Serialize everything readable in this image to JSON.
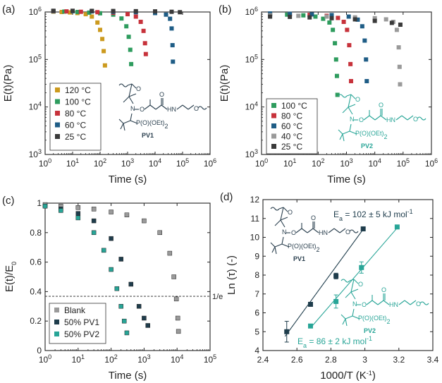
{
  "figure": {
    "labels": [
      "(a)",
      "(b)",
      "(c)",
      "(d)"
    ]
  },
  "chem": {
    "pv1_label": "PV1",
    "pv2_label": "PV2",
    "o_label": "O",
    "n_label": "N",
    "hn_label": "HN",
    "phos_label": "P(O)(OEt)",
    "sub2": "2"
  },
  "colors": {
    "c120": "#cc9a1e",
    "c100": "#2e9c5e",
    "c80": "#c7323b",
    "c60": "#1f5d86",
    "c40": "#9a9a9a",
    "c25": "#3a3a3a",
    "blank": "#9a9a9a",
    "pv1": "#1f3d4c",
    "pv2": "#28a597",
    "ink": "#1f3d4c"
  },
  "chart_data": [
    {
      "id": "a",
      "type": "scatter",
      "xscale": "log",
      "yscale": "log",
      "xlim": [
        1,
        1000000
      ],
      "ylim": [
        1000,
        1000000
      ],
      "xlabel": "Time (s)",
      "ylabel": "E(t)(Pa)",
      "xticks": [
        "10^0",
        "10^1",
        "10^2",
        "10^3",
        "10^4",
        "10^5",
        "10^6"
      ],
      "yticks": [
        "10^3",
        "10^4",
        "10^5",
        "10^6"
      ],
      "legend": "bottom-left",
      "series": [
        {
          "name": "120 °C",
          "color_key": "c120",
          "x": [
            2,
            4,
            8,
            15,
            30,
            50,
            80,
            100,
            120,
            135,
            150
          ],
          "y": [
            1020000,
            1000000,
            980000,
            950000,
            900000,
            800000,
            600000,
            420000,
            270000,
            150000,
            75000
          ]
        },
        {
          "name": "100 °C",
          "color_key": "c100",
          "x": [
            2,
            5,
            15,
            40,
            100,
            300,
            600,
            900,
            1100,
            1250,
            1350
          ],
          "y": [
            1030000,
            1020000,
            1000000,
            970000,
            940000,
            880000,
            730000,
            500000,
            300000,
            160000,
            80000
          ]
        },
        {
          "name": "80 °C",
          "color_key": "c80",
          "x": [
            2,
            6,
            20,
            80,
            300,
            1000,
            2000,
            3000,
            3800,
            4300,
            4600
          ],
          "y": [
            1040000,
            1030000,
            1010000,
            990000,
            960000,
            900000,
            800000,
            620000,
            400000,
            220000,
            130000
          ]
        },
        {
          "name": "60 °C",
          "color_key": "c60",
          "x": [
            2,
            10,
            50,
            300,
            2000,
            10000,
            25000,
            35000,
            40000,
            43000,
            44500
          ],
          "y": [
            1050000,
            1040000,
            1030000,
            1010000,
            990000,
            950000,
            880000,
            720000,
            450000,
            200000,
            90000
          ]
        },
        {
          "name": "25 °C",
          "color_key": "c25",
          "x": [
            2,
            10,
            50,
            300,
            2000,
            10000,
            40000,
            80000
          ],
          "y": [
            1060000,
            1060000,
            1055000,
            1050000,
            1040000,
            1030000,
            1010000,
            990000
          ]
        }
      ]
    },
    {
      "id": "b",
      "type": "scatter",
      "xscale": "log",
      "yscale": "log",
      "xlim": [
        1,
        1000000
      ],
      "ylim": [
        1000,
        1000000
      ],
      "xlabel": "Time (s)",
      "ylabel": "E(t)(Pa)",
      "xticks": [
        "10^0",
        "10^1",
        "10^2",
        "10^3",
        "10^4",
        "10^5",
        "10^6"
      ],
      "yticks": [
        "10^3",
        "10^4",
        "10^5",
        "10^6"
      ],
      "legend": "bottom-left",
      "series": [
        {
          "name": "100 °C",
          "color_key": "c100",
          "x": [
            2,
            8,
            30,
            80,
            150,
            250,
            330,
            390,
            430,
            460,
            480
          ],
          "y": [
            900000,
            880000,
            850000,
            800000,
            720000,
            600000,
            420000,
            220000,
            100000,
            45000,
            18000
          ]
        },
        {
          "name": "80 °C",
          "color_key": "c80",
          "x": [
            2,
            10,
            50,
            200,
            500,
            800,
            1050,
            1250,
            1380,
            1450
          ],
          "y": [
            920000,
            900000,
            870000,
            830000,
            750000,
            620000,
            420000,
            200000,
            80000,
            35000
          ]
        },
        {
          "name": "60 °C",
          "color_key": "c60",
          "x": [
            2,
            10,
            60,
            300,
            1200,
            2500,
            3600,
            4400,
            4900,
            5200
          ],
          "y": [
            930000,
            915000,
            890000,
            860000,
            800000,
            690000,
            500000,
            250000,
            100000,
            35000
          ]
        },
        {
          "name": "40 °C",
          "color_key": "c40",
          "x": [
            2,
            20,
            200,
            2000,
            10000,
            25000,
            45000,
            60000,
            70000,
            75000,
            78000
          ],
          "y": [
            850000,
            830000,
            800000,
            770000,
            740000,
            700000,
            620000,
            420000,
            180000,
            70000,
            30000
          ]
        },
        {
          "name": "25 °C",
          "color_key": "c25",
          "x": [
            2,
            10,
            50,
            300,
            2000,
            10000,
            40000,
            80000
          ],
          "y": [
            800000,
            790000,
            770000,
            740000,
            700000,
            650000,
            590000,
            540000
          ]
        }
      ]
    },
    {
      "id": "c",
      "type": "scatter",
      "xscale": "log",
      "yscale": "linear",
      "xlim": [
        1,
        100000
      ],
      "ylim": [
        0,
        1
      ],
      "xlabel": "Time (s)",
      "ylabel": "E(t)/E0",
      "xticks": [
        "10^0",
        "10^1",
        "10^2",
        "10^3",
        "10^4",
        "10^5"
      ],
      "yticks": [
        "0",
        "0.2",
        "0.4",
        "0.6",
        "0.8",
        "1"
      ],
      "legend": "bottom-left",
      "reference_line": {
        "y": 0.368,
        "label": "1/e"
      },
      "series": [
        {
          "name": "Blank",
          "color_key": "blank",
          "x": [
            1,
            3,
            10,
            30,
            100,
            300,
            1000,
            3000,
            6000,
            8000,
            9500,
            10500,
            11000
          ],
          "y": [
            0.99,
            0.98,
            0.97,
            0.96,
            0.94,
            0.92,
            0.88,
            0.8,
            0.66,
            0.5,
            0.35,
            0.22,
            0.13
          ]
        },
        {
          "name": "50% PV1",
          "color_key": "pv1",
          "x": [
            1,
            3,
            10,
            30,
            100,
            200,
            400,
            700,
            1000,
            1300
          ],
          "y": [
            0.98,
            0.96,
            0.93,
            0.88,
            0.76,
            0.62,
            0.45,
            0.3,
            0.22,
            0.17
          ]
        },
        {
          "name": "50% PV2",
          "color_key": "pv2",
          "x": [
            1,
            3,
            10,
            30,
            60,
            100,
            150,
            200,
            250,
            300
          ],
          "y": [
            0.98,
            0.95,
            0.9,
            0.8,
            0.68,
            0.55,
            0.42,
            0.3,
            0.2,
            0.12
          ]
        }
      ]
    },
    {
      "id": "d",
      "type": "scatter",
      "xscale": "linear",
      "yscale": "linear",
      "xlim": [
        2.4,
        3.4
      ],
      "ylim": [
        4,
        12
      ],
      "xlabel": "1000/T (K-1)",
      "ylabel": "Ln (τ) (-)",
      "xticks": [
        "2.4",
        "2.6",
        "2.8",
        "3",
        "3.2",
        "3.4"
      ],
      "yticks": [
        "4",
        "5",
        "6",
        "7",
        "8",
        "9",
        "10",
        "11",
        "12"
      ],
      "annotations": [
        "Ea = 102 ± 5 kJ mol-1",
        "Ea = 86 ± 2 kJ mol-1"
      ],
      "series": [
        {
          "name": "PV1",
          "color_key": "pv1",
          "x": [
            2.54,
            2.68,
            2.83,
            2.99
          ],
          "y": [
            5.0,
            6.45,
            7.95,
            10.45
          ],
          "err": [
            0.55,
            0.1,
            0.15,
            0.1
          ],
          "fit": [
            [
              2.53,
              4.75
            ],
            [
              3.0,
              10.55
            ]
          ]
        },
        {
          "name": "PV2",
          "color_key": "pv2",
          "x": [
            2.68,
            2.83,
            2.98,
            3.19
          ],
          "y": [
            5.3,
            6.6,
            8.4,
            10.55
          ],
          "err": [
            0.1,
            0.35,
            0.3,
            0.1
          ],
          "fit": [
            [
              2.68,
              5.2
            ],
            [
              3.2,
              10.6
            ]
          ]
        }
      ]
    }
  ]
}
